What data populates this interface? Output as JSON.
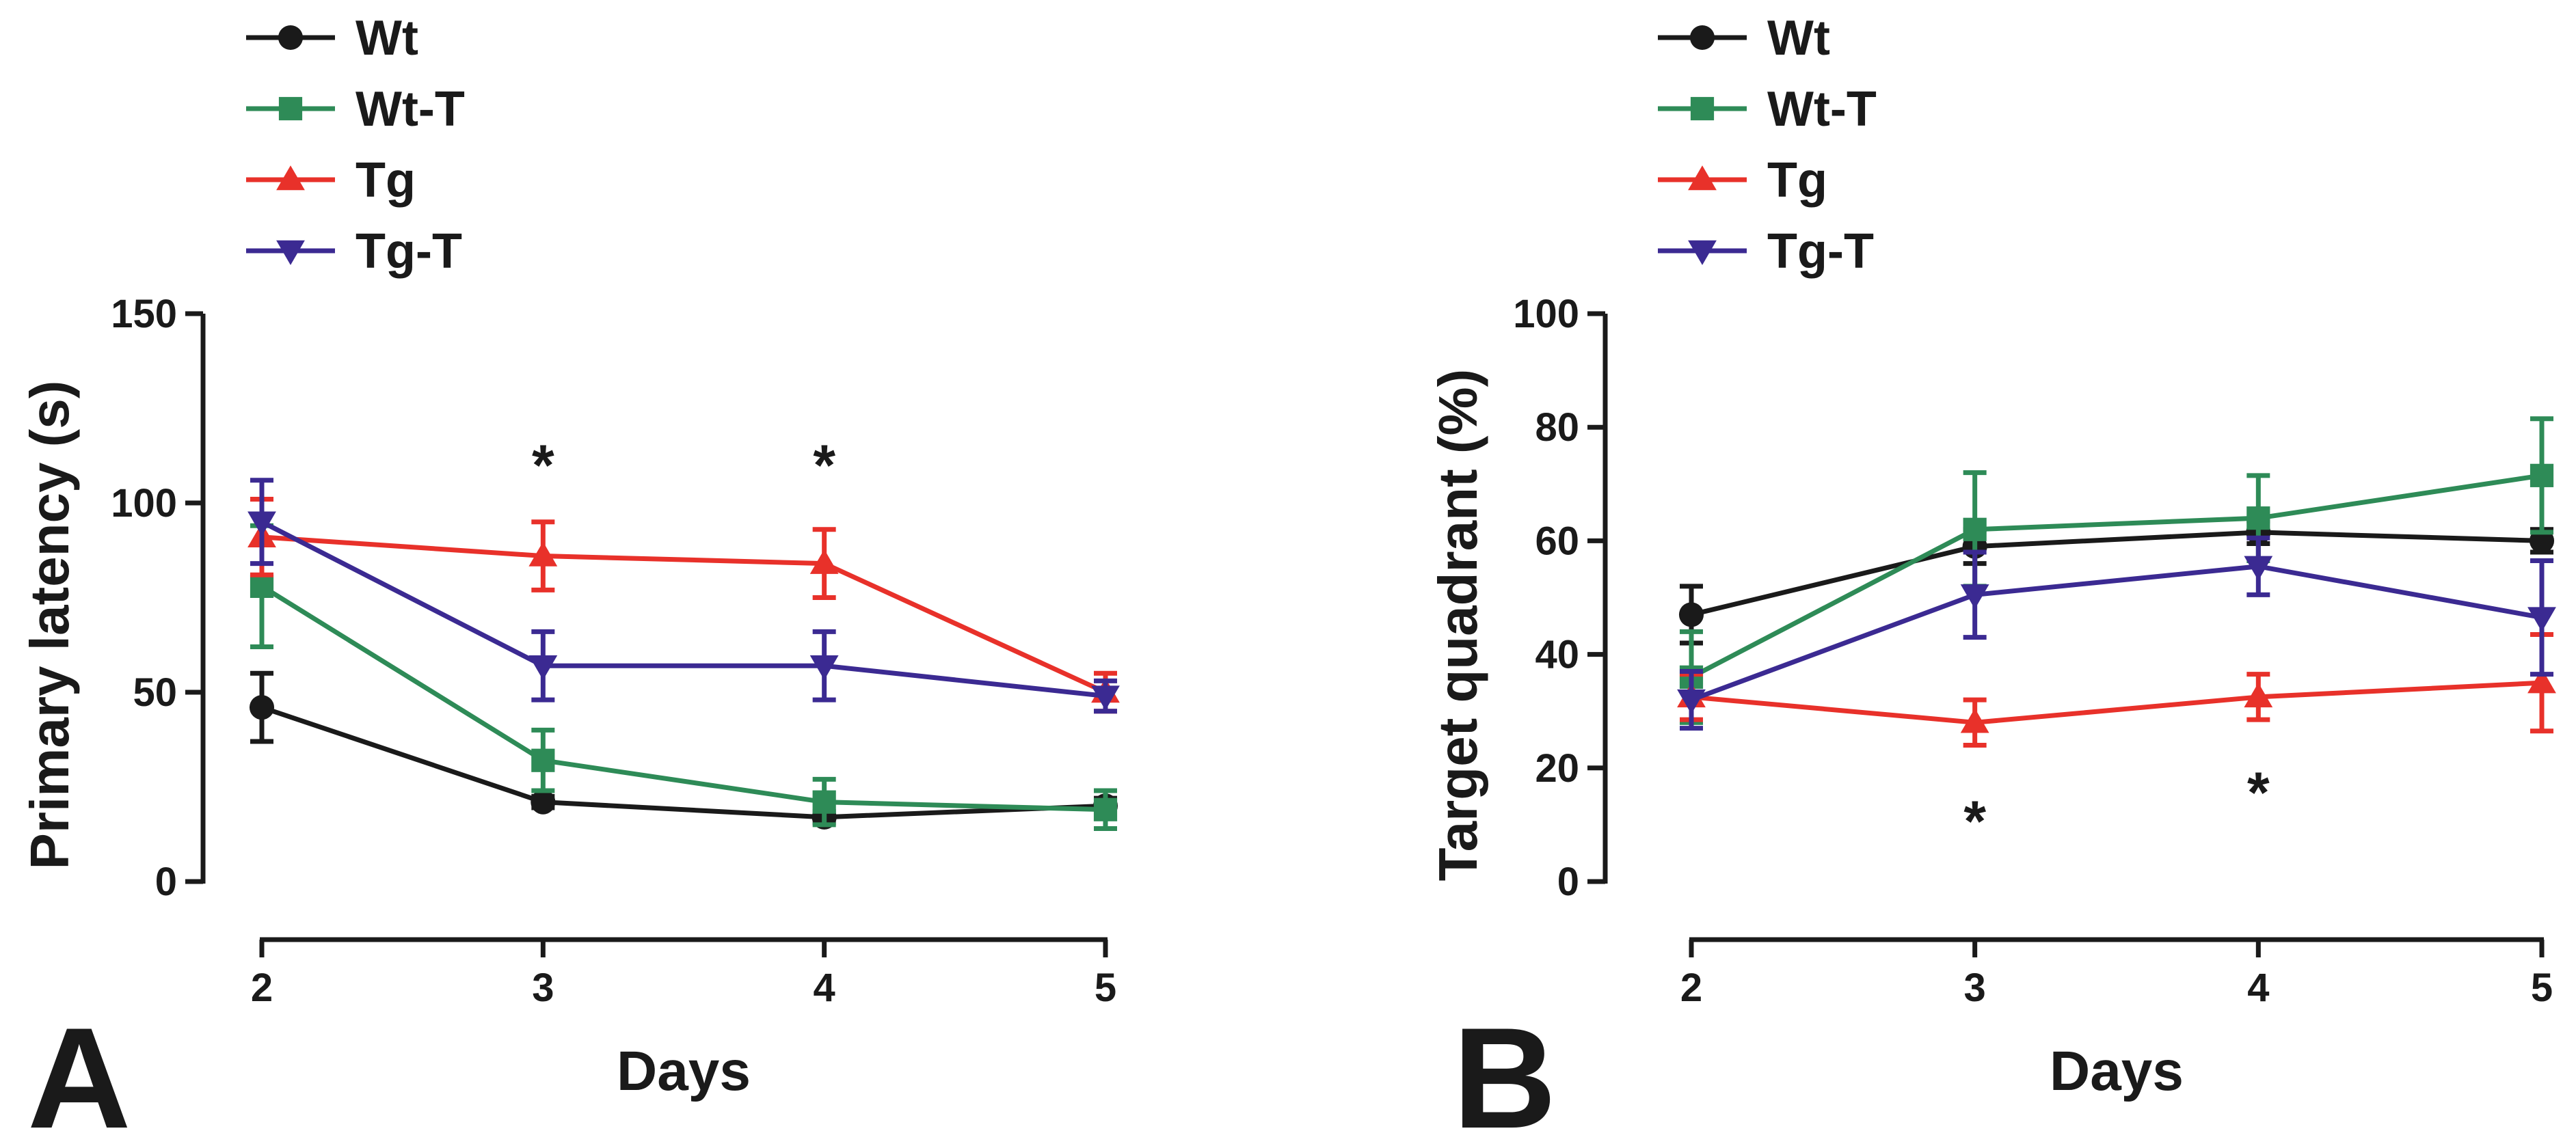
{
  "chart_data": [
    {
      "panel_letter": "A",
      "type": "line",
      "x": [
        2,
        3,
        4,
        5
      ],
      "xlabel": "Days",
      "ylabel": "Primary latency (s)",
      "ylim": [
        0,
        150
      ],
      "yticks": [
        0,
        50,
        100,
        150
      ],
      "xticks": [
        2,
        3,
        4,
        5
      ],
      "legend_position": "top-left",
      "series": [
        {
          "name": "Wt",
          "color": "#1a1a1a",
          "marker": "circle",
          "values": [
            46,
            21,
            17,
            20
          ],
          "errors": [
            9,
            1.5,
            1.5,
            2
          ]
        },
        {
          "name": "Wt-T",
          "color": "#2e8b57",
          "marker": "square",
          "values": [
            78,
            32,
            21,
            19
          ],
          "errors": [
            16,
            8,
            6,
            5
          ]
        },
        {
          "name": "Tg",
          "color": "#e8312a",
          "marker": "triangle-up",
          "values": [
            91,
            86,
            84,
            50
          ],
          "errors": [
            10,
            9,
            9,
            5
          ]
        },
        {
          "name": "Tg-T",
          "color": "#3b2a92",
          "marker": "triangle-down",
          "values": [
            95,
            57,
            57,
            49
          ],
          "errors": [
            11,
            9,
            9,
            4
          ]
        }
      ],
      "annotations": [
        {
          "text": "*",
          "x": 3,
          "y": 112
        },
        {
          "text": "*",
          "x": 4,
          "y": 112
        }
      ]
    },
    {
      "panel_letter": "B",
      "type": "line",
      "x": [
        2,
        3,
        4,
        5
      ],
      "xlabel": "Days",
      "ylabel": "Target quadrant (%)",
      "ylim": [
        0,
        100
      ],
      "yticks": [
        0,
        20,
        40,
        60,
        80,
        100
      ],
      "xticks": [
        2,
        3,
        4,
        5
      ],
      "legend_position": "top-left",
      "series": [
        {
          "name": "Wt",
          "color": "#1a1a1a",
          "marker": "circle",
          "values": [
            47,
            59,
            61.5,
            60
          ],
          "errors": [
            5,
            3,
            2,
            2
          ]
        },
        {
          "name": "Wt-T",
          "color": "#2e8b57",
          "marker": "square",
          "values": [
            36,
            62,
            64,
            71.5
          ],
          "errors": [
            8,
            10,
            7.5,
            10
          ]
        },
        {
          "name": "Tg",
          "color": "#e8312a",
          "marker": "triangle-up",
          "values": [
            32.5,
            28,
            32.5,
            35
          ],
          "errors": [
            4,
            4,
            4,
            8.5
          ]
        },
        {
          "name": "Tg-T",
          "color": "#3b2a92",
          "marker": "triangle-down",
          "values": [
            32,
            50.5,
            55.5,
            46.5
          ],
          "errors": [
            5,
            7.5,
            5,
            10
          ]
        }
      ],
      "annotations": [
        {
          "text": "*",
          "x": 3,
          "y": 12
        },
        {
          "text": "*",
          "x": 4,
          "y": 17
        }
      ]
    }
  ]
}
